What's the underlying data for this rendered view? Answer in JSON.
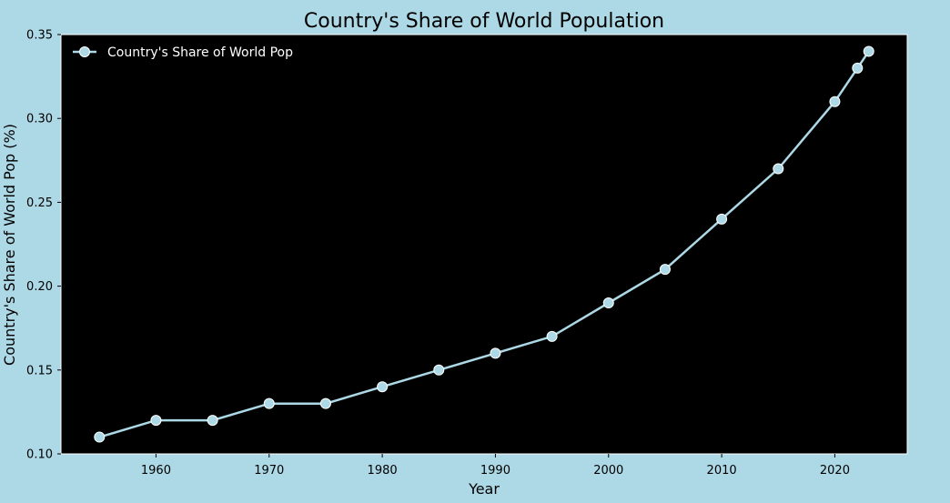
{
  "chart_data": {
    "type": "line",
    "title": "Country's Share of World Population",
    "xlabel": "Year",
    "ylabel": "Country's Share of World Pop (%)",
    "x": [
      1955,
      1960,
      1965,
      1970,
      1975,
      1980,
      1985,
      1990,
      1995,
      2000,
      2005,
      2010,
      2015,
      2020,
      2022,
      2023
    ],
    "series": [
      {
        "name": "Country's Share of World Pop",
        "values": [
          0.11,
          0.12,
          0.12,
          0.13,
          0.13,
          0.14,
          0.15,
          0.16,
          0.17,
          0.19,
          0.21,
          0.24,
          0.27,
          0.31,
          0.33,
          0.34
        ]
      }
    ],
    "xlim": [
      1951.6,
      2026.4
    ],
    "ylim": [
      0.1,
      0.35
    ],
    "x_ticks": [
      "1960",
      "1970",
      "1980",
      "1990",
      "2000",
      "2010",
      "2020"
    ],
    "y_ticks": [
      "0.10",
      "0.15",
      "0.20",
      "0.25",
      "0.30",
      "0.35"
    ],
    "grid": false,
    "legend_position": "top-left",
    "colors": {
      "page_background": "#add8e6",
      "plot_background": "#000000",
      "series_line": "#add8e6",
      "marker_edge": "#ffffff",
      "legend_text": "#ffffff",
      "plot_frame": "#ffffff"
    }
  }
}
